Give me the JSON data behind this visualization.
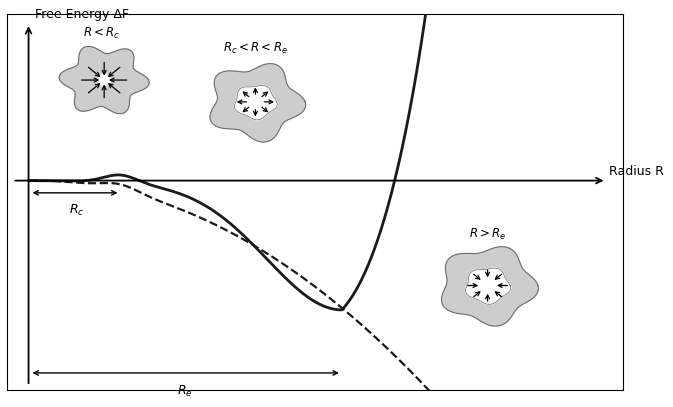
{
  "background_color": "#ffffff",
  "line_color": "#1a1a1a",
  "dashed_color": "#1a1a1a",
  "Rc": 1.7,
  "Re": 5.8,
  "xlim": [
    -0.4,
    11.0
  ],
  "ylim": [
    -4.8,
    3.8
  ],
  "xlabel": "Radius R",
  "ylabel": "Free Energy ΔF",
  "blob_color": "#c8c8c8",
  "blob_edge_color": "#666666"
}
